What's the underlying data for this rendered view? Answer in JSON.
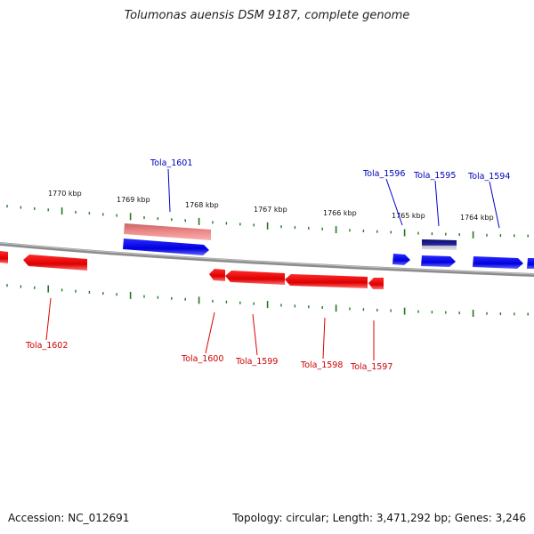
{
  "title": "Tolumonas auensis DSM 9187, complete genome",
  "accession_text": "Accession: NC_012691",
  "summary_text": "Topology: circular; Length: 3,471,292 bp; Genes: 3,246",
  "colors": {
    "forward": "#0000ee",
    "reverse": "#ee0000",
    "tick": "#1e7a1e",
    "backbone": "#8c8c8c"
  },
  "kbp_labels": [
    "1770 kbp",
    "1769 kbp",
    "1768 kbp",
    "1767 kbp",
    "1766 kbp",
    "1765 kbp",
    "1764 kbp"
  ],
  "genes_forward": [
    "Tola_1601",
    "Tola_1596",
    "Tola_1595",
    "Tola_1594"
  ],
  "genes_reverse": [
    "Tola_1602",
    "Tola_1600",
    "Tola_1599",
    "Tola_1598",
    "Tola_1597"
  ]
}
